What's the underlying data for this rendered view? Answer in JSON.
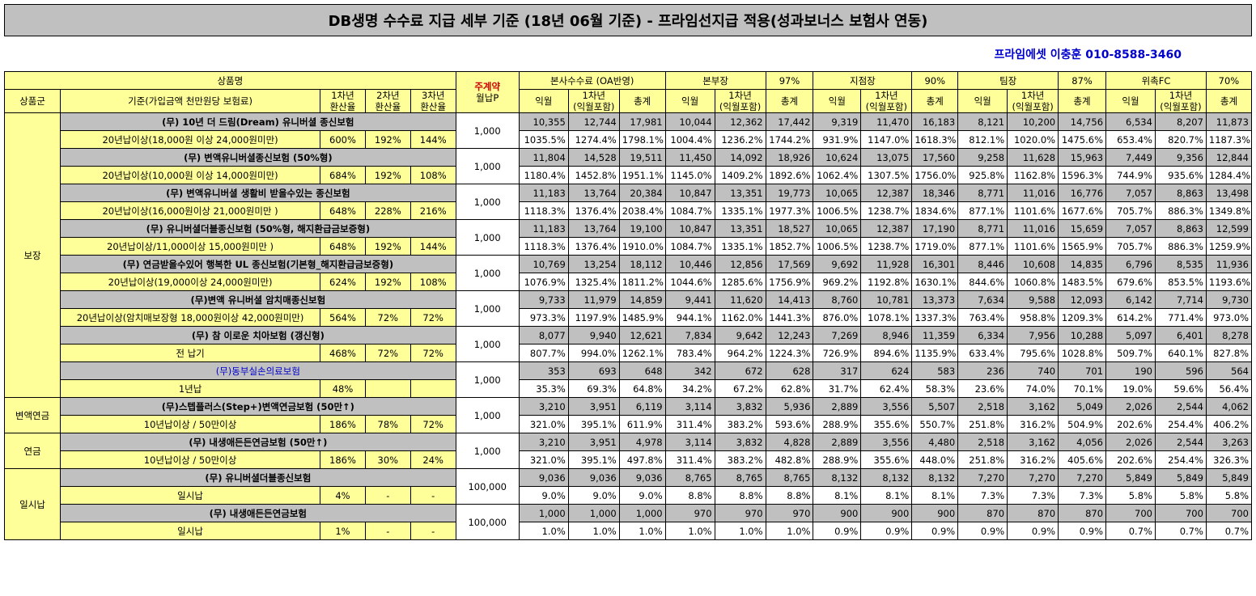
{
  "title": "DB생명 수수료 지급 세부 기준 (18년 06월 기준) - 프라임선지급 적용(성과보너스 보험사 연동)",
  "contact": "프라임에셋 이충훈 010-8588-3460",
  "header": {
    "product_name": "상품명",
    "main_contract": "주계약",
    "monthly_premium": "월납P",
    "group_col": "상품군",
    "criteria_col": "기준(가입금액 천만원당 보험료)",
    "year1": "1차년\n환산율",
    "year2": "2차년\n환산율",
    "year3": "3차년\n환산율",
    "levels": [
      {
        "name": "본사수수료 (OA반영)",
        "pct": ""
      },
      {
        "name": "본부장",
        "pct": "97%"
      },
      {
        "name": "지점장",
        "pct": "90%"
      },
      {
        "name": "팀장",
        "pct": "87%"
      },
      {
        "name": "위촉FC",
        "pct": "70%"
      }
    ],
    "sub1": "익월",
    "sub2": "1차년\n(익월포함)",
    "sub3": "총계"
  },
  "groups": [
    {
      "name": "보장",
      "span": 8
    },
    {
      "name": "변액연금",
      "span": 1
    },
    {
      "name": "연금",
      "span": 1
    },
    {
      "name": "일시납",
      "span": 2
    }
  ],
  "products": [
    {
      "name": "(무) 10년 더 드림(Dream) 유니버셜 종신보험",
      "blue": false,
      "cond": "20년납이상(18,000원 이상 24,000원미만)",
      "r1": "600%",
      "r2": "192%",
      "r3": "144%",
      "prem": "1,000",
      "nums": [
        "10,355",
        "12,744",
        "17,981",
        "10,044",
        "12,362",
        "17,442",
        "9,319",
        "11,470",
        "16,183",
        "8,121",
        "10,200",
        "14,756",
        "6,534",
        "8,207",
        "11,873"
      ],
      "pcts": [
        "1035.5%",
        "1274.4%",
        "1798.1%",
        "1004.4%",
        "1236.2%",
        "1744.2%",
        "931.9%",
        "1147.0%",
        "1618.3%",
        "812.1%",
        "1020.0%",
        "1475.6%",
        "653.4%",
        "820.7%",
        "1187.3%"
      ]
    },
    {
      "name": "(무) 변액유니버셜종신보험 (50%형)",
      "blue": false,
      "cond": "20년납이상(10,000원 이상 14,000원미만)",
      "r1": "684%",
      "r2": "192%",
      "r3": "108%",
      "prem": "1,000",
      "nums": [
        "11,804",
        "14,528",
        "19,511",
        "11,450",
        "14,092",
        "18,926",
        "10,624",
        "13,075",
        "17,560",
        "9,258",
        "11,628",
        "15,963",
        "7,449",
        "9,356",
        "12,844"
      ],
      "pcts": [
        "1180.4%",
        "1452.8%",
        "1951.1%",
        "1145.0%",
        "1409.2%",
        "1892.6%",
        "1062.4%",
        "1307.5%",
        "1756.0%",
        "925.8%",
        "1162.8%",
        "1596.3%",
        "744.9%",
        "935.6%",
        "1284.4%"
      ]
    },
    {
      "name": "(무) 변액유니버셜 생활비 받을수있는 종신보험",
      "blue": false,
      "cond": "20년납이상(16,000원이상 21,000원미만 )",
      "r1": "648%",
      "r2": "228%",
      "r3": "216%",
      "prem": "1,000",
      "nums": [
        "11,183",
        "13,764",
        "20,384",
        "10,847",
        "13,351",
        "19,773",
        "10,065",
        "12,387",
        "18,346",
        "8,771",
        "11,016",
        "16,776",
        "7,057",
        "8,863",
        "13,498"
      ],
      "pcts": [
        "1118.3%",
        "1376.4%",
        "2038.4%",
        "1084.7%",
        "1335.1%",
        "1977.3%",
        "1006.5%",
        "1238.7%",
        "1834.6%",
        "877.1%",
        "1101.6%",
        "1677.6%",
        "705.7%",
        "886.3%",
        "1349.8%"
      ]
    },
    {
      "name": "(무) 유니버셜더블종신보험 (50%형, 해지환급금보증형)",
      "blue": false,
      "cond": "20년납이상/11,000이상 15,000원미만 )",
      "r1": "648%",
      "r2": "192%",
      "r3": "144%",
      "prem": "1,000",
      "nums": [
        "11,183",
        "13,764",
        "19,100",
        "10,847",
        "13,351",
        "18,527",
        "10,065",
        "12,387",
        "17,190",
        "8,771",
        "11,016",
        "15,659",
        "7,057",
        "8,863",
        "12,599"
      ],
      "pcts": [
        "1118.3%",
        "1376.4%",
        "1910.0%",
        "1084.7%",
        "1335.1%",
        "1852.7%",
        "1006.5%",
        "1238.7%",
        "1719.0%",
        "877.1%",
        "1101.6%",
        "1565.9%",
        "705.7%",
        "886.3%",
        "1259.9%"
      ]
    },
    {
      "name": "(무) 연금받을수있어 행복한 UL 종신보험(기본형_해지환급금보증형)",
      "blue": false,
      "cond": "20년납이상(19,000이상 24,000원미만)",
      "r1": "624%",
      "r2": "192%",
      "r3": "108%",
      "prem": "1,000",
      "nums": [
        "10,769",
        "13,254",
        "18,112",
        "10,446",
        "12,856",
        "17,569",
        "9,692",
        "11,928",
        "16,301",
        "8,446",
        "10,608",
        "14,835",
        "6,796",
        "8,535",
        "11,936"
      ],
      "pcts": [
        "1076.9%",
        "1325.4%",
        "1811.2%",
        "1044.6%",
        "1285.6%",
        "1756.9%",
        "969.2%",
        "1192.8%",
        "1630.1%",
        "844.6%",
        "1060.8%",
        "1483.5%",
        "679.6%",
        "853.5%",
        "1193.6%"
      ]
    },
    {
      "name": "(무)변액 유니버셜 암치매종신보험",
      "blue": false,
      "cond": "20년납이상(암치매보장형 18,000원이상 42,000원미만)",
      "r1": "564%",
      "r2": "72%",
      "r3": "72%",
      "prem": "1,000",
      "nums": [
        "9,733",
        "11,979",
        "14,859",
        "9,441",
        "11,620",
        "14,413",
        "8,760",
        "10,781",
        "13,373",
        "7,634",
        "9,588",
        "12,093",
        "6,142",
        "7,714",
        "9,730"
      ],
      "pcts": [
        "973.3%",
        "1197.9%",
        "1485.9%",
        "944.1%",
        "1162.0%",
        "1441.3%",
        "876.0%",
        "1078.1%",
        "1337.3%",
        "763.4%",
        "958.8%",
        "1209.3%",
        "614.2%",
        "771.4%",
        "973.0%"
      ]
    },
    {
      "name": "(무) 참 이로운 치아보험 (갱신형)",
      "blue": false,
      "cond": "전 납기",
      "r1": "468%",
      "r2": "72%",
      "r3": "72%",
      "prem": "1,000",
      "nums": [
        "8,077",
        "9,940",
        "12,621",
        "7,834",
        "9,642",
        "12,243",
        "7,269",
        "8,946",
        "11,359",
        "6,334",
        "7,956",
        "10,288",
        "5,097",
        "6,401",
        "8,278"
      ],
      "pcts": [
        "807.7%",
        "994.0%",
        "1262.1%",
        "783.4%",
        "964.2%",
        "1224.3%",
        "726.9%",
        "894.6%",
        "1135.9%",
        "633.4%",
        "795.6%",
        "1028.8%",
        "509.7%",
        "640.1%",
        "827.8%"
      ]
    },
    {
      "name": "(무)동부실손의료보험",
      "blue": true,
      "cond": "1년납",
      "r1": "48%",
      "r2": "",
      "r3": "",
      "prem": "1,000",
      "nums": [
        "353",
        "693",
        "648",
        "342",
        "672",
        "628",
        "317",
        "624",
        "583",
        "236",
        "740",
        "701",
        "190",
        "596",
        "564"
      ],
      "pcts": [
        "35.3%",
        "69.3%",
        "64.8%",
        "34.2%",
        "67.2%",
        "62.8%",
        "31.7%",
        "62.4%",
        "58.3%",
        "23.6%",
        "74.0%",
        "70.1%",
        "19.0%",
        "59.6%",
        "56.4%"
      ]
    },
    {
      "name": "(무)스텝플러스(Step+)변액연금보험 (50만↑)",
      "blue": false,
      "cond": "10년납이상 / 50만이상",
      "r1": "186%",
      "r2": "78%",
      "r3": "72%",
      "prem": "1,000",
      "nums": [
        "3,210",
        "3,951",
        "6,119",
        "3,114",
        "3,832",
        "5,936",
        "2,889",
        "3,556",
        "5,507",
        "2,518",
        "3,162",
        "5,049",
        "2,026",
        "2,544",
        "4,062"
      ],
      "pcts": [
        "321.0%",
        "395.1%",
        "611.9%",
        "311.4%",
        "383.2%",
        "593.6%",
        "288.9%",
        "355.6%",
        "550.7%",
        "251.8%",
        "316.2%",
        "504.9%",
        "202.6%",
        "254.4%",
        "406.2%"
      ]
    },
    {
      "name": "(무) 내생애든든연금보험 (50만↑)",
      "blue": false,
      "cond": "10년납이상 / 50만이상",
      "r1": "186%",
      "r2": "30%",
      "r3": "24%",
      "prem": "1,000",
      "nums": [
        "3,210",
        "3,951",
        "4,978",
        "3,114",
        "3,832",
        "4,828",
        "2,889",
        "3,556",
        "4,480",
        "2,518",
        "3,162",
        "4,056",
        "2,026",
        "2,544",
        "3,263"
      ],
      "pcts": [
        "321.0%",
        "395.1%",
        "497.8%",
        "311.4%",
        "383.2%",
        "482.8%",
        "288.9%",
        "355.6%",
        "448.0%",
        "251.8%",
        "316.2%",
        "405.6%",
        "202.6%",
        "254.4%",
        "326.3%"
      ]
    },
    {
      "name": "(무) 유니버셜더블종신보험",
      "blue": false,
      "cond": "일시납",
      "r1": "4%",
      "r2": "-",
      "r3": "-",
      "prem": "100,000",
      "nums": [
        "9,036",
        "9,036",
        "9,036",
        "8,765",
        "8,765",
        "8,765",
        "8,132",
        "8,132",
        "8,132",
        "7,270",
        "7,270",
        "7,270",
        "5,849",
        "5,849",
        "5,849"
      ],
      "pcts": [
        "9.0%",
        "9.0%",
        "9.0%",
        "8.8%",
        "8.8%",
        "8.8%",
        "8.1%",
        "8.1%",
        "8.1%",
        "7.3%",
        "7.3%",
        "7.3%",
        "5.8%",
        "5.8%",
        "5.8%"
      ]
    },
    {
      "name": "(무) 내생애든든연금보험",
      "blue": false,
      "cond": "일시납",
      "r1": "1%",
      "r2": "-",
      "r3": "-",
      "prem": "100,000",
      "nums": [
        "1,000",
        "1,000",
        "1,000",
        "970",
        "970",
        "970",
        "900",
        "900",
        "900",
        "870",
        "870",
        "870",
        "700",
        "700",
        "700"
      ],
      "pcts": [
        "1.0%",
        "1.0%",
        "1.0%",
        "1.0%",
        "1.0%",
        "1.0%",
        "0.9%",
        "0.9%",
        "0.9%",
        "0.9%",
        "0.9%",
        "0.9%",
        "0.7%",
        "0.7%",
        "0.7%"
      ]
    }
  ]
}
